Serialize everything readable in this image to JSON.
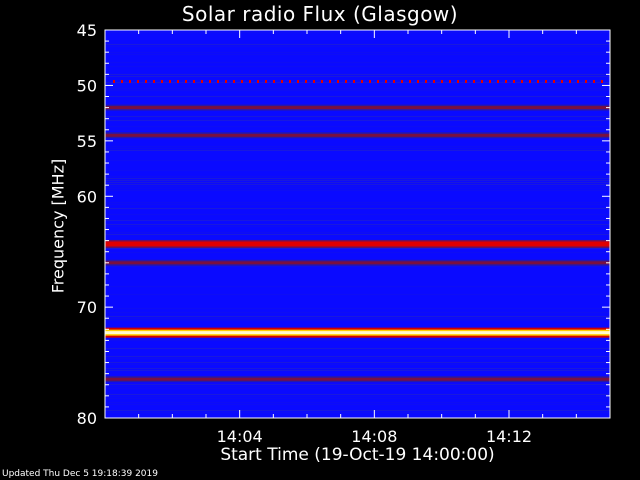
{
  "title": "Solar radio Flux (Glasgow)",
  "footer": "Updated Thu Dec  5 19:18:39 2019",
  "chart_data": {
    "type": "heatmap",
    "title": "Solar radio Flux (Glasgow)",
    "xlabel": "Start Time (19-Oct-19 14:00:00)",
    "ylabel": "Frequency [MHz]",
    "x_ticks": [
      "14:04",
      "14:08",
      "14:12"
    ],
    "x_tick_minutes": [
      4,
      8,
      12
    ],
    "xlim_minutes": [
      0,
      15
    ],
    "y_ticks": [
      45,
      50,
      55,
      60,
      70,
      80
    ],
    "ylim": [
      45,
      80
    ],
    "colors": {
      "background": "#000000",
      "low": "#0a0aff",
      "mid": "#2a1aa0",
      "band": "#7a1040",
      "strong": "#e00000",
      "max": "#fffbd0",
      "axis": "#ffffff"
    },
    "bands": [
      {
        "freq_mhz": 49.6,
        "level": "dotted-red"
      },
      {
        "freq_mhz": 52.0,
        "level": "band"
      },
      {
        "freq_mhz": 54.5,
        "level": "band"
      },
      {
        "freq_mhz": 64.3,
        "level": "strong"
      },
      {
        "freq_mhz": 66.0,
        "level": "band"
      },
      {
        "freq_mhz": 72.3,
        "level": "max"
      },
      {
        "freq_mhz": 76.5,
        "level": "band"
      }
    ]
  }
}
